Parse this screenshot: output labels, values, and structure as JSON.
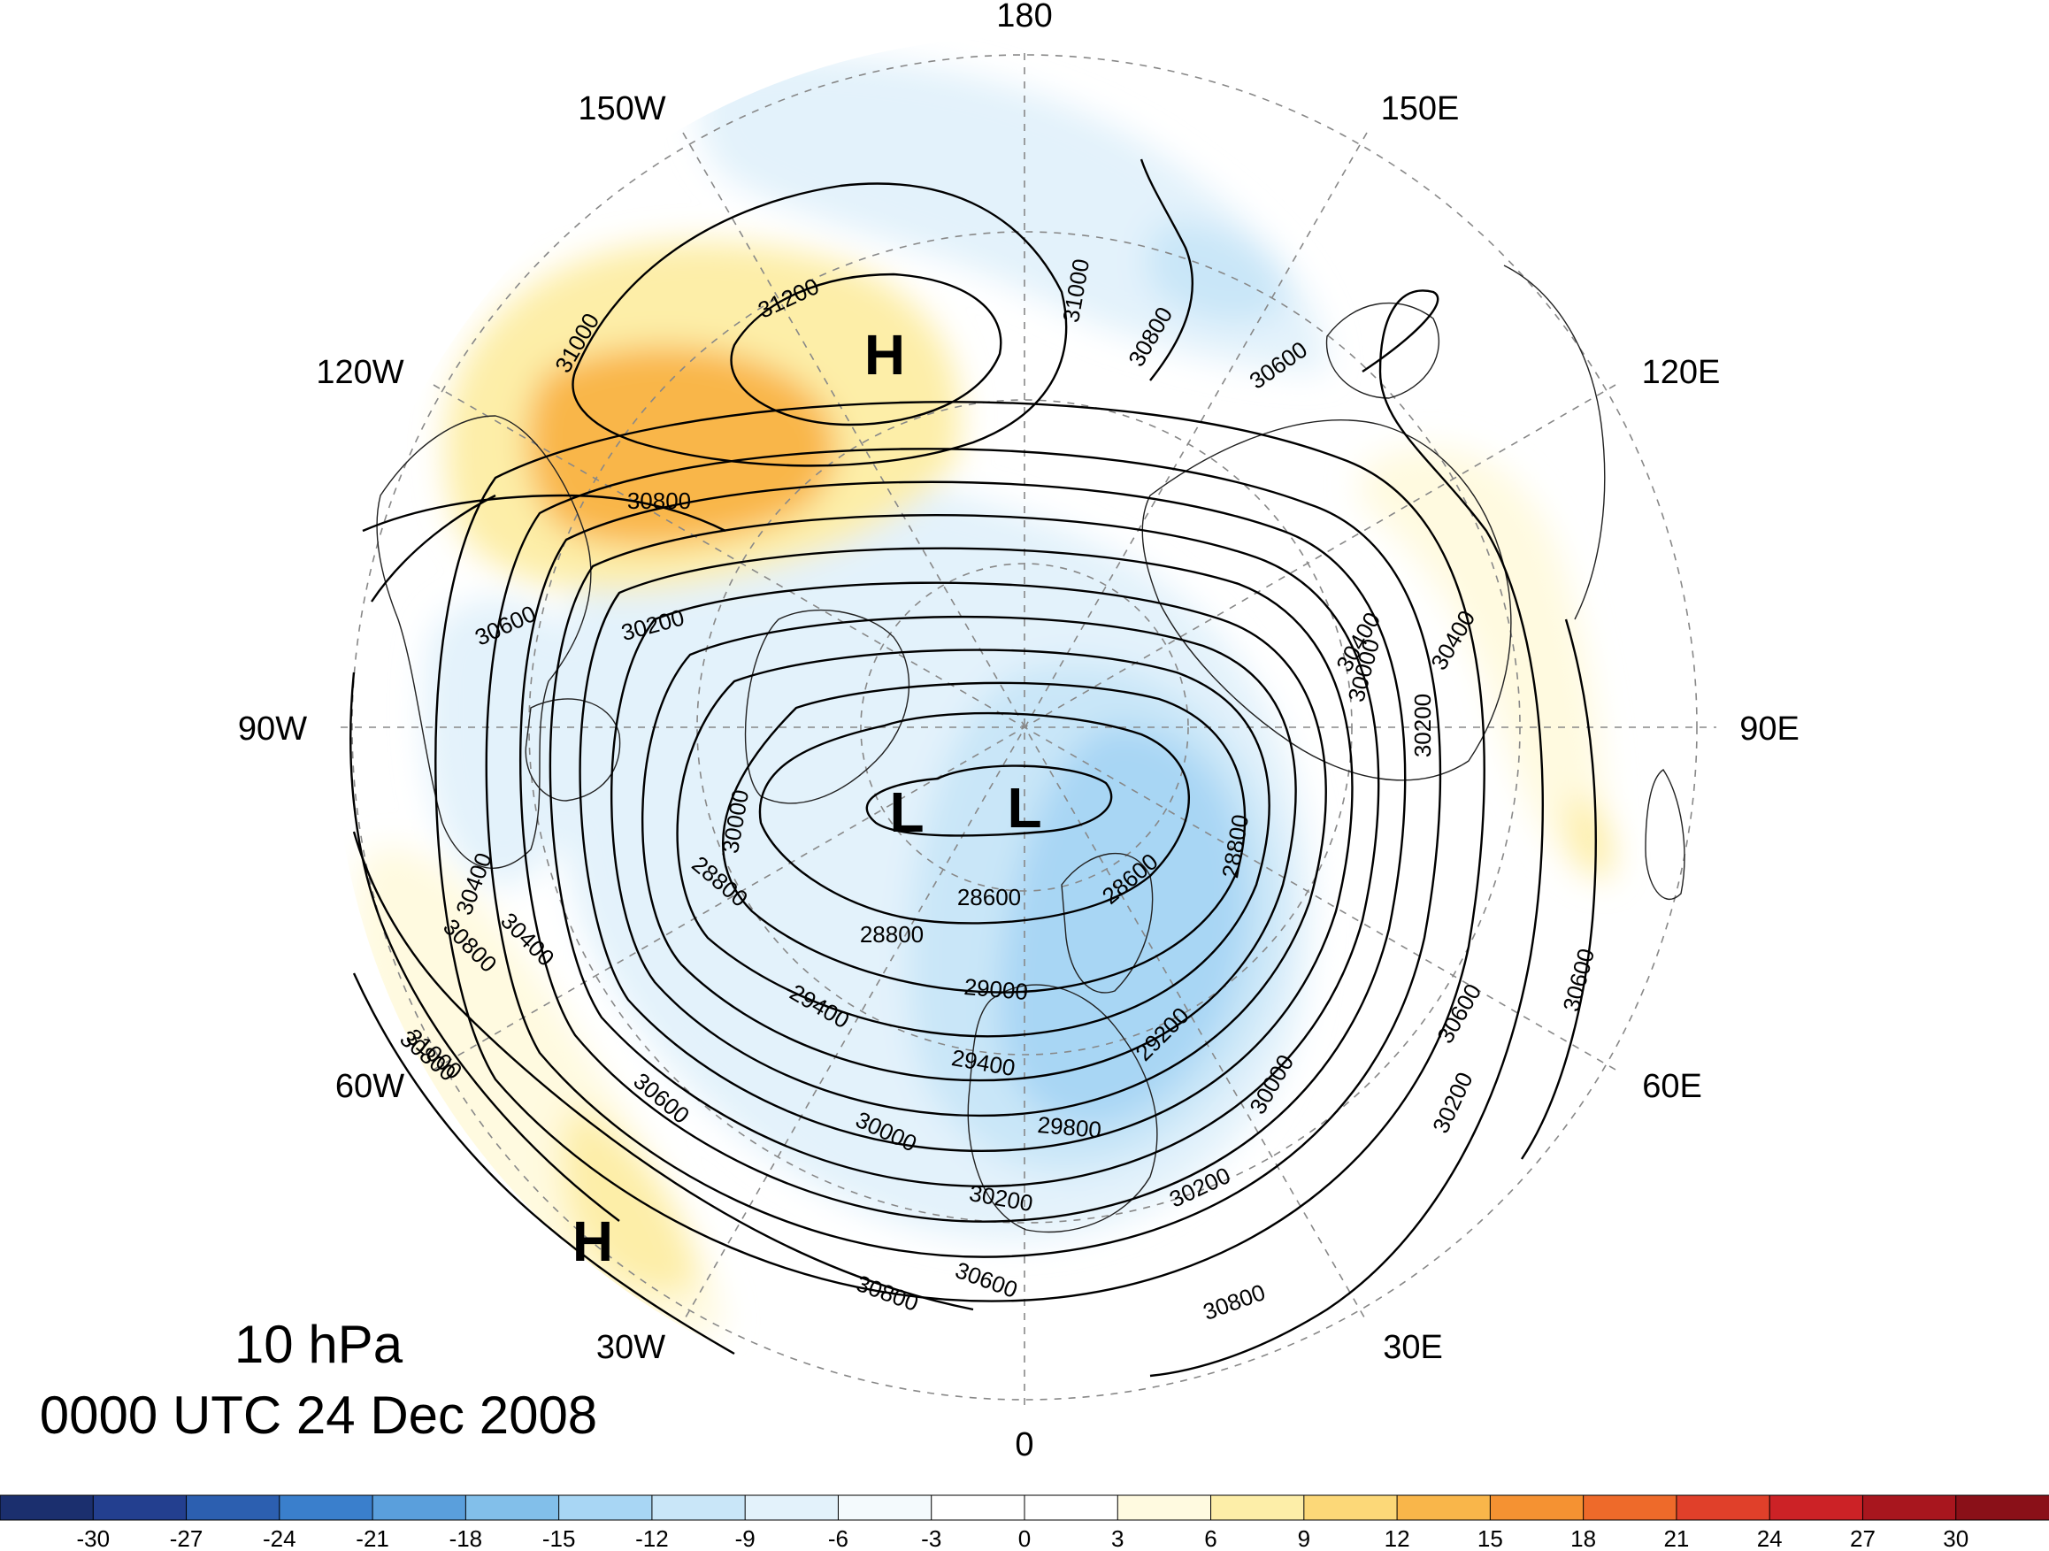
{
  "title": {
    "level": "10 hPa",
    "time": "0000 UTC 24 Dec 2008"
  },
  "longitude_labels": [
    "180",
    "150E",
    "120E",
    "90E",
    "60E",
    "30E",
    "0",
    "30W",
    "60W",
    "90W",
    "120W",
    "150W"
  ],
  "pressure_centers": [
    "H",
    "H",
    "L",
    "L"
  ],
  "contour_labels": [
    "31200",
    "31000",
    "31000",
    "30800",
    "30800",
    "30800",
    "30800",
    "30800",
    "30800",
    "30600",
    "30600",
    "30600",
    "30600",
    "30600",
    "30600",
    "30400",
    "30400",
    "30400",
    "30400",
    "30200",
    "30200",
    "30200",
    "30200",
    "30200",
    "30000",
    "30000",
    "30000",
    "30000",
    "31000",
    "29800",
    "29400",
    "29400",
    "29200",
    "29000",
    "28800",
    "28800",
    "28800",
    "28600",
    "28600"
  ],
  "colorbar": {
    "ticks": [
      "-30",
      "-27",
      "-24",
      "-21",
      "-18",
      "-15",
      "-12",
      "-9",
      "-6",
      "-3",
      "0",
      "3",
      "6",
      "9",
      "12",
      "15",
      "18",
      "21",
      "24",
      "27",
      "30"
    ],
    "colors": [
      "#1b2f6e",
      "#233f8f",
      "#2c5fb0",
      "#3a7fcc",
      "#5a9fdc",
      "#82bfea",
      "#a8d6f4",
      "#c9e6f8",
      "#e3f2fb",
      "#f4fafd",
      "#ffffff",
      "#ffffff",
      "#fffae0",
      "#fdeea8",
      "#fcd878",
      "#f9b64a",
      "#f59232",
      "#ee6a2a",
      "#e0402a",
      "#cc2226",
      "#a8161e",
      "#8a1018"
    ]
  }
}
